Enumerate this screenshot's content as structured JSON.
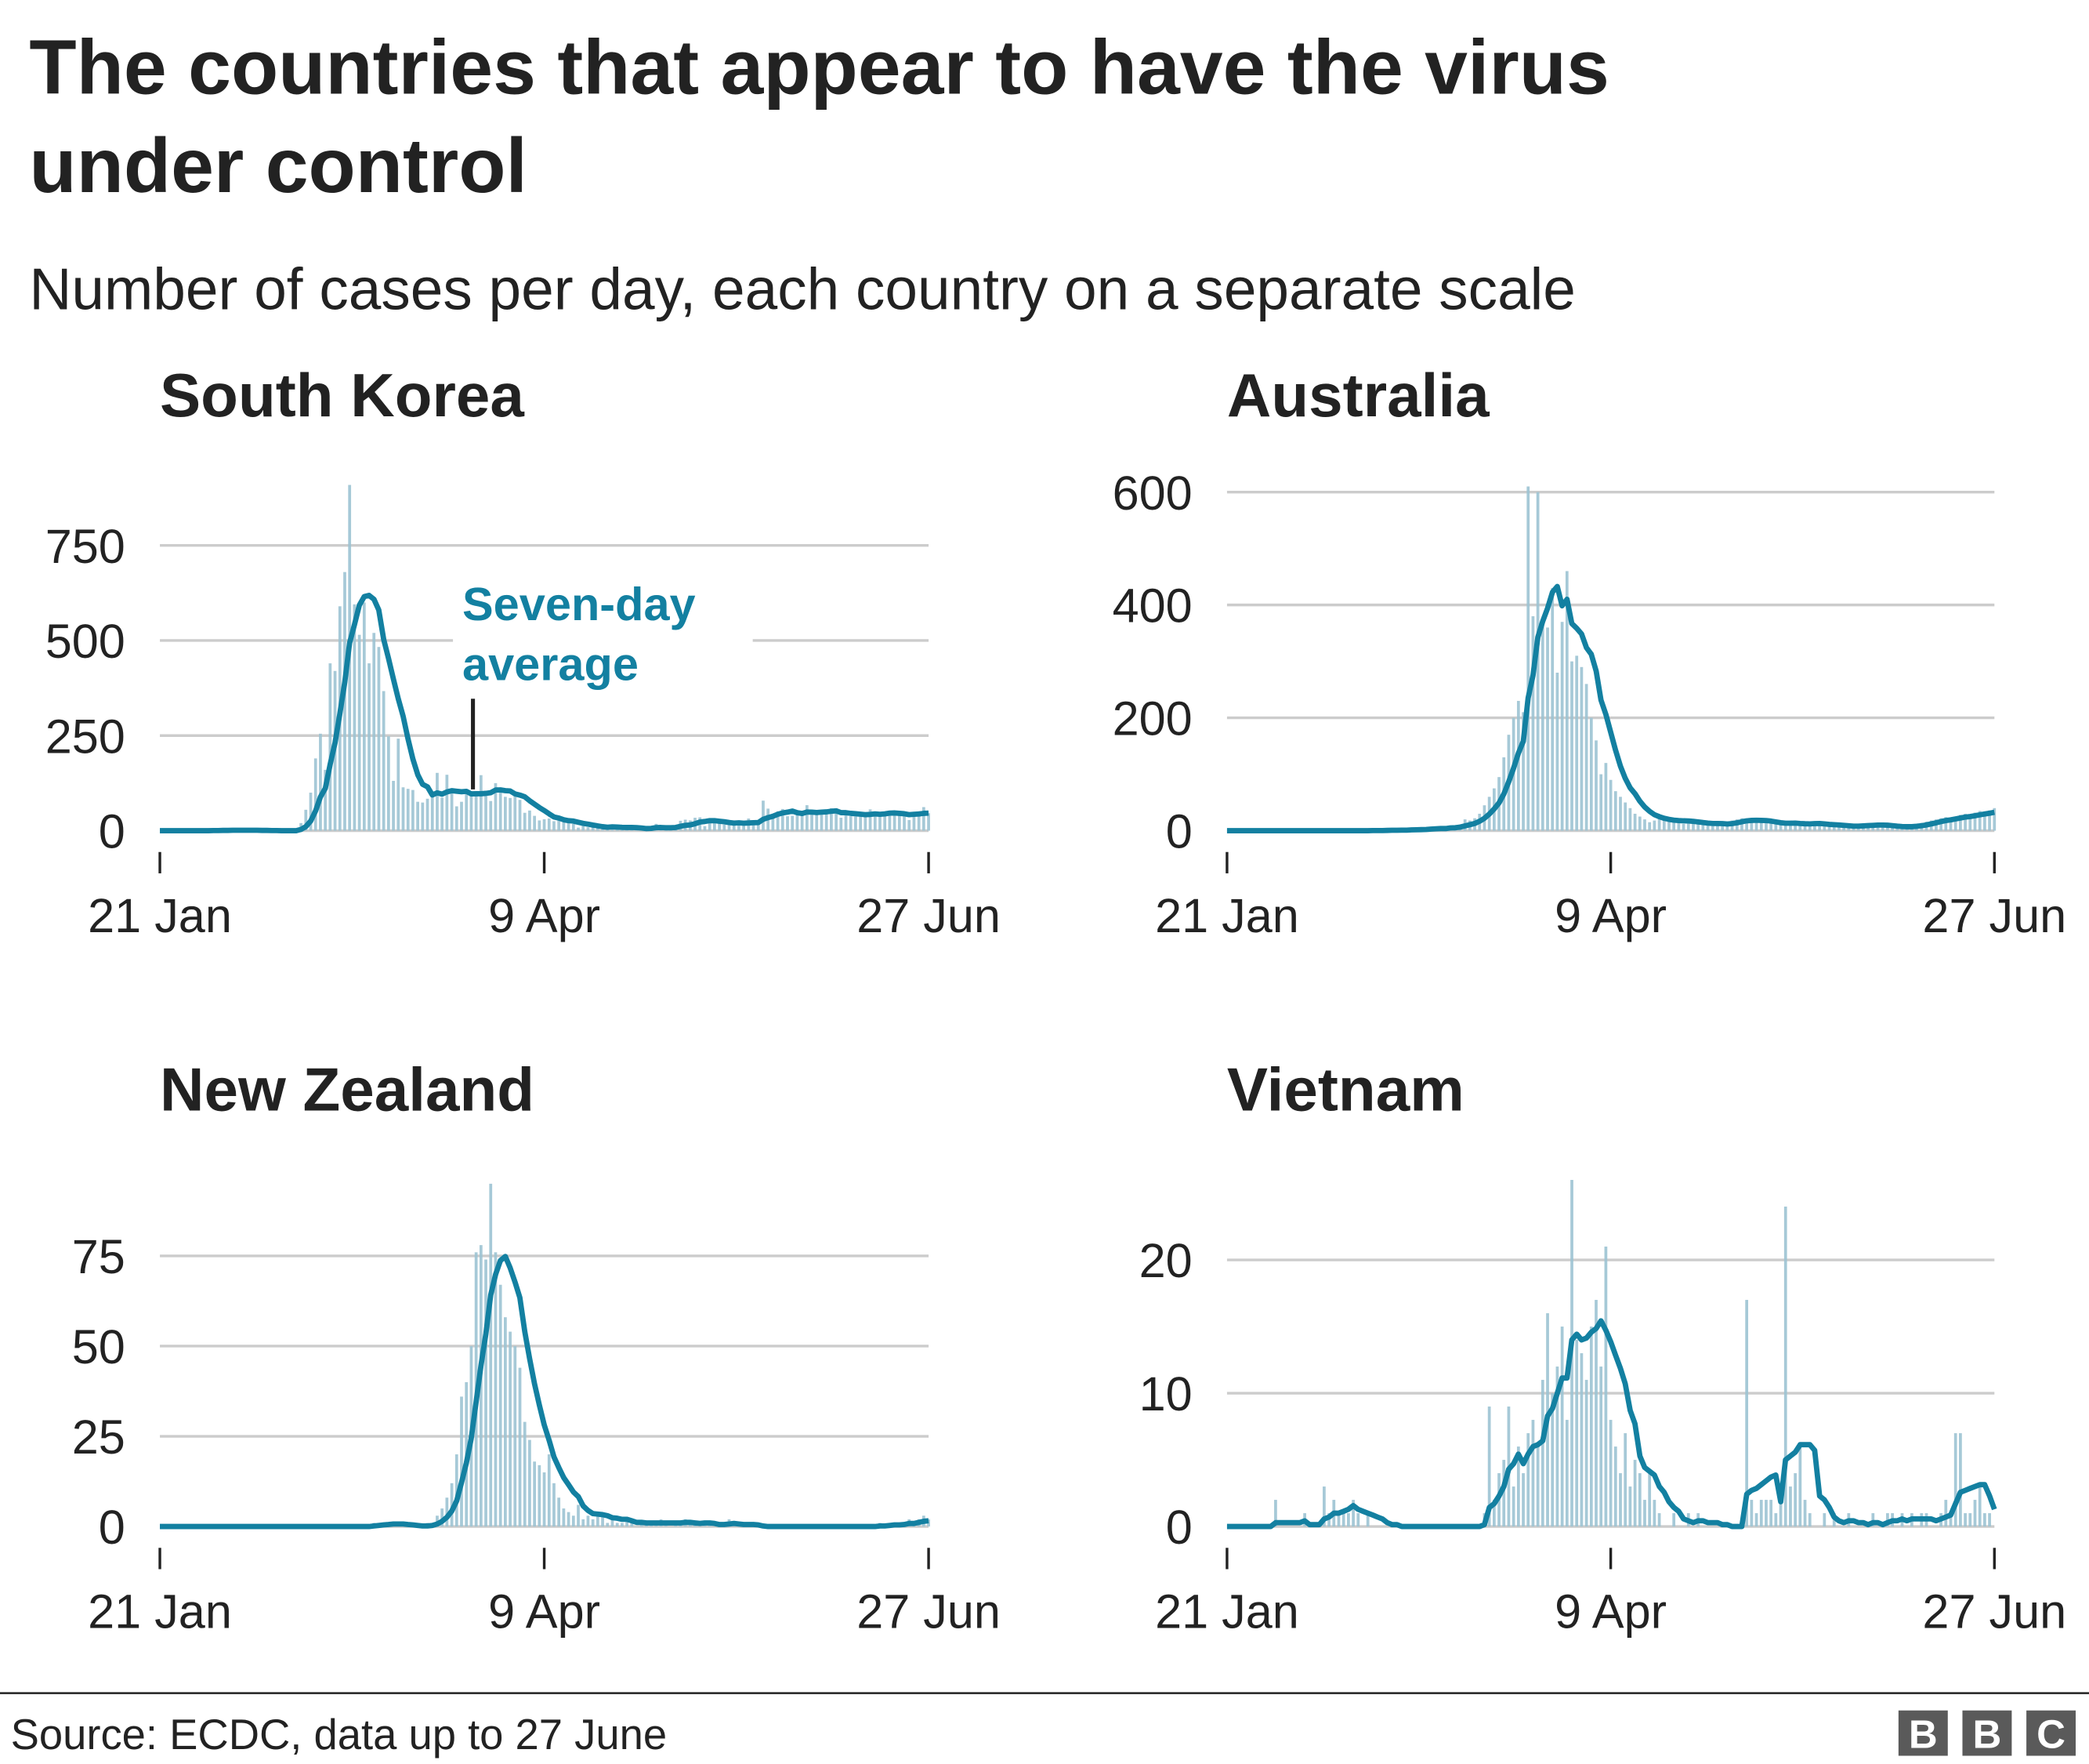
{
  "title_lines": [
    "The countries that appear to have the virus",
    "under control"
  ],
  "subtitle": "Number of cases per day, each country on a separate scale",
  "source": "Source: ECDC, data up to 27 June",
  "logo": "BBC",
  "colors": {
    "line": "#1380a1",
    "bars": "#9cc3d3",
    "grid": "#cccccc",
    "text": "#222222"
  },
  "chart_data": [
    {
      "type": "bar+line",
      "title": "South Korea",
      "x_start": "21 Jan",
      "x_end": "27 Jun",
      "xticks": [
        "21 Jan",
        "9 Apr",
        "27 Jun"
      ],
      "yticks": [
        0,
        250,
        500,
        750
      ],
      "annotation": [
        "Seven-day",
        "average"
      ],
      "daily_cases": [
        0,
        0,
        0,
        0,
        0,
        0,
        0,
        0,
        0,
        0,
        1,
        1,
        1,
        1,
        2,
        1,
        1,
        1,
        1,
        1,
        0,
        0,
        0,
        0,
        0,
        0,
        0,
        0,
        1,
        20,
        55,
        100,
        190,
        255,
        160,
        440,
        420,
        590,
        680,
        909,
        595,
        515,
        600,
        440,
        520,
        483,
        367,
        248,
        131,
        242,
        114,
        110,
        107,
        76,
        74,
        84,
        93,
        152,
        87,
        147,
        98,
        64,
        76,
        100,
        104,
        91,
        146,
        105,
        78,
        125,
        101,
        89,
        86,
        94,
        81,
        47,
        53,
        39,
        27,
        30,
        32,
        25,
        27,
        22,
        22,
        18,
        8,
        13,
        9,
        11,
        8,
        6,
        10,
        14,
        9,
        4,
        9,
        8,
        3,
        2,
        4,
        12,
        18,
        13,
        3,
        2,
        6,
        26,
        29,
        27,
        34,
        35,
        12,
        20,
        27,
        20,
        16,
        19,
        27,
        15,
        13,
        32,
        25,
        18,
        79,
        58,
        39,
        51,
        57,
        38,
        39,
        49,
        43,
        67,
        48,
        50,
        45,
        45,
        59,
        51,
        34,
        48,
        38,
        37,
        37,
        49,
        56,
        45,
        39,
        46,
        51,
        41,
        42,
        48,
        28,
        46,
        51,
        62,
        46
      ]
    },
    {
      "type": "bar+line",
      "title": "Australia",
      "x_start": "21 Jan",
      "x_end": "27 Jun",
      "xticks": [
        "21 Jan",
        "9 Apr",
        "27 Jun"
      ],
      "yticks": [
        0,
        200,
        400,
        600
      ],
      "daily_cases": [
        0,
        0,
        0,
        0,
        0,
        0,
        0,
        0,
        0,
        0,
        0,
        0,
        0,
        0,
        0,
        0,
        0,
        0,
        0,
        0,
        0,
        0,
        0,
        0,
        0,
        0,
        0,
        0,
        0,
        0,
        1,
        0,
        1,
        2,
        1,
        0,
        1,
        2,
        3,
        2,
        4,
        3,
        5,
        4,
        6,
        3,
        9,
        7,
        11,
        20,
        18,
        22,
        30,
        45,
        60,
        75,
        95,
        130,
        170,
        200,
        230,
        210,
        610,
        380,
        600,
        370,
        360,
        430,
        280,
        370,
        460,
        300,
        310,
        290,
        260,
        200,
        160,
        100,
        120,
        90,
        70,
        60,
        50,
        40,
        30,
        25,
        20,
        15,
        18,
        25,
        20,
        18,
        15,
        14,
        12,
        16,
        20,
        14,
        10,
        9,
        8,
        12,
        14,
        16,
        18,
        20,
        22,
        20,
        18,
        15,
        14,
        16,
        14,
        12,
        10,
        12,
        14,
        16,
        12,
        10,
        11,
        12,
        14,
        10,
        9,
        8,
        7,
        6,
        8,
        9,
        10,
        11,
        12,
        10,
        9,
        8,
        7,
        6,
        5,
        6,
        8,
        10,
        12,
        14,
        16,
        18,
        20,
        22,
        24,
        20,
        25,
        28,
        30,
        26,
        32,
        35,
        30,
        36,
        40
      ]
    },
    {
      "type": "bar+line",
      "title": "New Zealand",
      "x_start": "21 Jan",
      "x_end": "27 Jun",
      "xticks": [
        "21 Jan",
        "9 Apr",
        "27 Jun"
      ],
      "yticks": [
        0,
        25,
        50,
        75
      ],
      "daily_cases": [
        0,
        0,
        0,
        0,
        0,
        0,
        0,
        0,
        0,
        0,
        0,
        0,
        0,
        0,
        0,
        0,
        0,
        0,
        0,
        0,
        0,
        0,
        0,
        0,
        0,
        0,
        0,
        0,
        0,
        0,
        0,
        0,
        0,
        0,
        0,
        0,
        0,
        0,
        0,
        0,
        0,
        0,
        0,
        0,
        1,
        1,
        1,
        1,
        1,
        0,
        0,
        0,
        0,
        0,
        0,
        1,
        1,
        3,
        5,
        8,
        12,
        20,
        36,
        40,
        50,
        76,
        78,
        74,
        95,
        76,
        67,
        58,
        54,
        50,
        44,
        29,
        24,
        18,
        17,
        15,
        20,
        12,
        8,
        5,
        4,
        3,
        6,
        2,
        3,
        2,
        4,
        3,
        1,
        2,
        1,
        1,
        2,
        1,
        0,
        1,
        1,
        1,
        1,
        2,
        1,
        0,
        1,
        1,
        2,
        1,
        1,
        0,
        1,
        1,
        0,
        0,
        1,
        2,
        1,
        0,
        0,
        0,
        0,
        0,
        0,
        0,
        0,
        0,
        0,
        0,
        0,
        0,
        0,
        0,
        0,
        0,
        0,
        0,
        0,
        0,
        0,
        0,
        0,
        0,
        0,
        0,
        0,
        0,
        1,
        0,
        1,
        1,
        0,
        1,
        2,
        1,
        2,
        3,
        2
      ]
    },
    {
      "type": "bar+line",
      "title": "Vietnam",
      "x_start": "21 Jan",
      "x_end": "27 Jun",
      "xticks": [
        "21 Jan",
        "9 Apr",
        "27 Jun"
      ],
      "yticks": [
        0,
        10,
        20
      ],
      "daily_cases": [
        0,
        0,
        0,
        0,
        0,
        0,
        0,
        0,
        0,
        0,
        2,
        0,
        0,
        0,
        0,
        0,
        1,
        0,
        0,
        0,
        3,
        1,
        2,
        1,
        1,
        1,
        2,
        1,
        0,
        1,
        0,
        0,
        0,
        0,
        0,
        0,
        0,
        0,
        0,
        0,
        0,
        0,
        0,
        0,
        0,
        0,
        0,
        0,
        0,
        0,
        0,
        0,
        0,
        1,
        9,
        2,
        4,
        5,
        9,
        3,
        6,
        4,
        7,
        8,
        6,
        11,
        16,
        10,
        12,
        15,
        8,
        26,
        14,
        13,
        11,
        15,
        17,
        12,
        21,
        8,
        6,
        4,
        7,
        3,
        5,
        4,
        2,
        4,
        2,
        1,
        0,
        0,
        1,
        0,
        0,
        1,
        0,
        1,
        0,
        0,
        0,
        0,
        0,
        0,
        0,
        0,
        0,
        17,
        2,
        1,
        2,
        2,
        2,
        1,
        3,
        24,
        3,
        4,
        6,
        2,
        1,
        0,
        0,
        1,
        0,
        1,
        0,
        0,
        1,
        0,
        0,
        0,
        0,
        1,
        0,
        0,
        1,
        1,
        0,
        1,
        0,
        1,
        0,
        1,
        1,
        0,
        0,
        1,
        2,
        1,
        7,
        7,
        1,
        1,
        2,
        3,
        1,
        1,
        0
      ]
    }
  ]
}
